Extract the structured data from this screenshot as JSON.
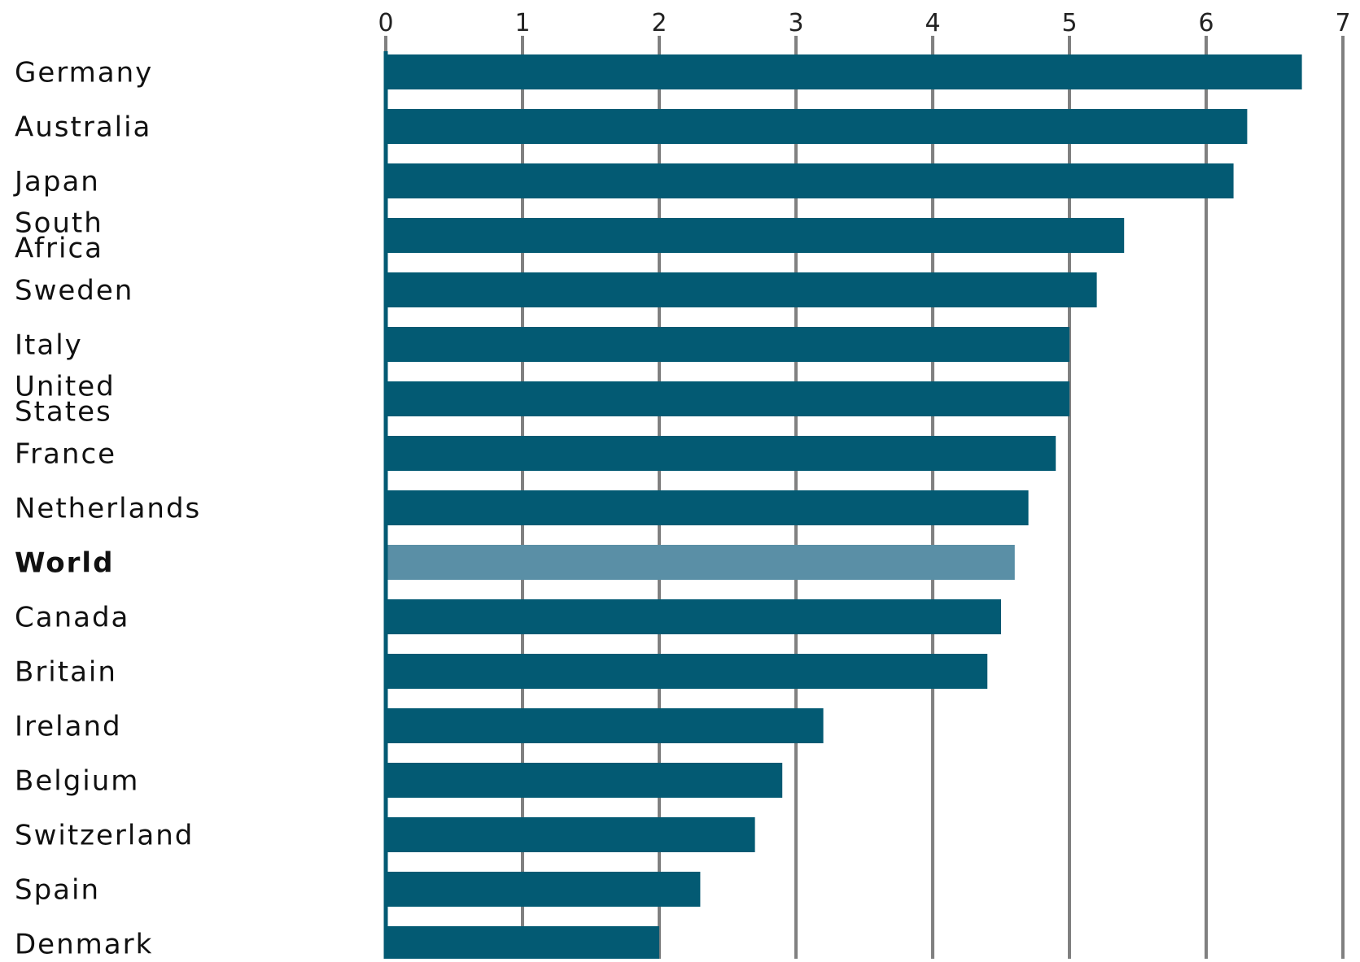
{
  "chart_data": {
    "type": "bar",
    "orientation": "horizontal",
    "title": "",
    "xlabel": "",
    "ylabel": "",
    "xlim": [
      0,
      7
    ],
    "x_ticks": [
      0,
      1,
      2,
      3,
      4,
      5,
      6,
      7
    ],
    "grid": true,
    "categories": [
      "Germany",
      "Australia",
      "Japan",
      "South Africa",
      "Sweden",
      "Italy",
      "United States",
      "France",
      "Netherlands",
      "World",
      "Canada",
      "Britain",
      "Ireland",
      "Belgium",
      "Switzerland",
      "Spain",
      "Denmark"
    ],
    "values": [
      6.7,
      6.3,
      6.2,
      5.4,
      5.2,
      5.0,
      5.0,
      4.9,
      4.7,
      4.6,
      4.5,
      4.4,
      3.2,
      2.9,
      2.7,
      2.3,
      2.0
    ],
    "highlight": "World",
    "colors": {
      "bar": "#035a73",
      "highlight": "#5a8fa6",
      "grid": "#808080",
      "baseline": "#035a73"
    }
  }
}
